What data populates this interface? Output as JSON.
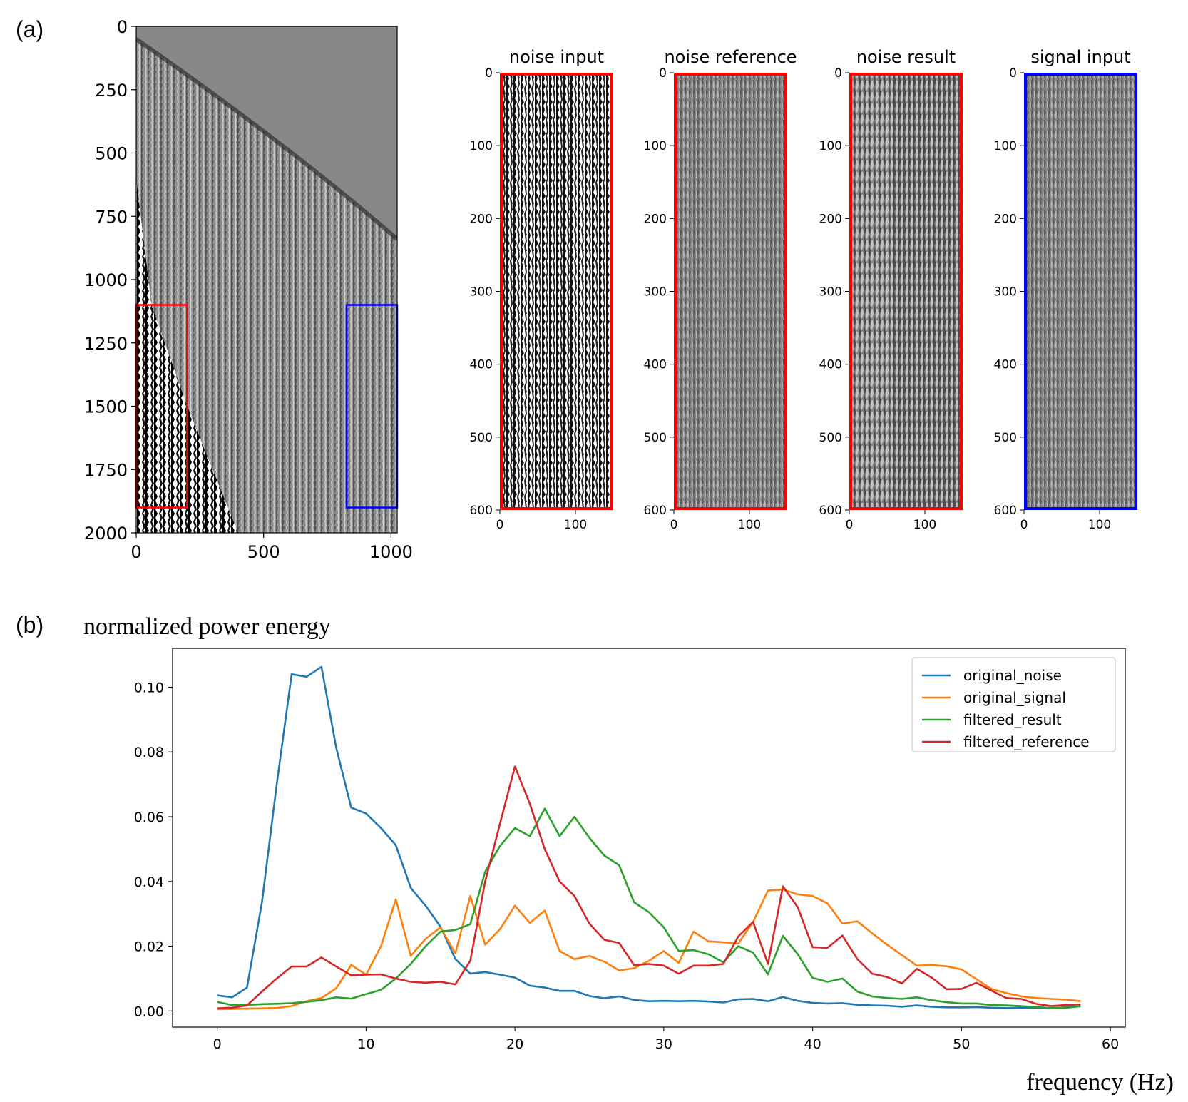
{
  "panel_labels": {
    "a": "(a)",
    "b": "(b)"
  },
  "chart_data": [
    {
      "type": "heatmap",
      "title": "",
      "xlabel": "",
      "ylabel": "",
      "xlim": [
        0,
        1024
      ],
      "ylim": [
        2000,
        0
      ],
      "x_ticks": [
        "0",
        "500",
        "1000"
      ],
      "y_ticks": [
        "0",
        "250",
        "500",
        "750",
        "1000",
        "1250",
        "1500",
        "1750",
        "2000"
      ],
      "colormap": "gray",
      "regions": [
        {
          "x": [
            0,
            200
          ],
          "y": [
            1100,
            1900
          ],
          "color": "#ff0000"
        },
        {
          "x": [
            825,
            1024
          ],
          "y": [
            1100,
            1900
          ],
          "color": "#0000ff"
        }
      ]
    },
    {
      "type": "heatmap",
      "title": "noise input",
      "xlim": [
        0,
        150
      ],
      "ylim": [
        600,
        0
      ],
      "x_ticks": [
        "0",
        "100"
      ],
      "y_ticks": [
        "0",
        "100",
        "200",
        "300",
        "400",
        "500",
        "600"
      ],
      "frame_color": "#ff0000",
      "contrast": "high"
    },
    {
      "type": "heatmap",
      "title": "noise reference",
      "xlim": [
        0,
        150
      ],
      "ylim": [
        600,
        0
      ],
      "x_ticks": [
        "0",
        "100"
      ],
      "y_ticks": [
        "0",
        "100",
        "200",
        "300",
        "400",
        "500",
        "600"
      ],
      "frame_color": "#ff0000",
      "contrast": "low"
    },
    {
      "type": "heatmap",
      "title": "noise result",
      "xlim": [
        0,
        150
      ],
      "ylim": [
        600,
        0
      ],
      "x_ticks": [
        "0",
        "100"
      ],
      "y_ticks": [
        "0",
        "100",
        "200",
        "300",
        "400",
        "500",
        "600"
      ],
      "frame_color": "#ff0000",
      "contrast": "medium"
    },
    {
      "type": "heatmap",
      "title": "signal input",
      "xlim": [
        0,
        150
      ],
      "ylim": [
        600,
        0
      ],
      "x_ticks": [
        "0",
        "100"
      ],
      "y_ticks": [
        "0",
        "100",
        "200",
        "300",
        "400",
        "500",
        "600"
      ],
      "frame_color": "#0000ff",
      "contrast": "low"
    },
    {
      "type": "line",
      "title": "",
      "ylabel": "normalized power energy",
      "xlabel": "frequency (Hz)",
      "xlim": [
        -3,
        61
      ],
      "ylim": [
        -0.005,
        0.112
      ],
      "x_ticks": [
        0,
        10,
        20,
        30,
        40,
        50,
        60
      ],
      "y_ticks": [
        "0.00",
        "0.02",
        "0.04",
        "0.06",
        "0.08",
        "0.10"
      ],
      "legend": "top-right",
      "x": [
        0,
        1,
        2,
        3,
        4,
        5,
        6,
        7,
        8,
        9,
        10,
        11,
        12,
        13,
        14,
        15,
        16,
        17,
        18,
        19,
        20,
        21,
        22,
        23,
        24,
        25,
        26,
        27,
        28,
        29,
        30,
        31,
        32,
        33,
        34,
        35,
        36,
        37,
        38,
        39,
        40,
        41,
        42,
        43,
        44,
        45,
        46,
        47,
        48,
        49,
        50,
        51,
        52,
        53,
        54,
        55,
        56,
        57,
        58
      ],
      "series": [
        {
          "name": "original_noise",
          "color": "#1f77b4",
          "values": [
            0.0048,
            0.0042,
            0.0072,
            0.0335,
            0.07,
            0.104,
            0.1032,
            0.1063,
            0.0812,
            0.0628,
            0.061,
            0.0565,
            0.0512,
            0.038,
            0.0325,
            0.026,
            0.016,
            0.0115,
            0.012,
            0.0112,
            0.0103,
            0.0078,
            0.0072,
            0.0062,
            0.0062,
            0.0046,
            0.0039,
            0.0045,
            0.0034,
            0.003,
            0.0031,
            0.003,
            0.0031,
            0.0029,
            0.0026,
            0.0036,
            0.0037,
            0.003,
            0.0043,
            0.0031,
            0.0025,
            0.0023,
            0.0024,
            0.0019,
            0.0017,
            0.0016,
            0.0013,
            0.0017,
            0.0013,
            0.0011,
            0.0011,
            0.0012,
            0.001,
            0.0009,
            0.001,
            0.001,
            0.0009,
            0.0011,
            0.0014
          ]
        },
        {
          "name": "original_signal",
          "color": "#ff7f0e",
          "values": [
            0.0005,
            0.0006,
            0.0007,
            0.0008,
            0.0009,
            0.0015,
            0.003,
            0.004,
            0.007,
            0.0142,
            0.0112,
            0.02,
            0.0345,
            0.017,
            0.0223,
            0.0258,
            0.0178,
            0.0355,
            0.0205,
            0.0253,
            0.0325,
            0.0272,
            0.031,
            0.0185,
            0.016,
            0.017,
            0.0152,
            0.0125,
            0.0132,
            0.0155,
            0.0185,
            0.0148,
            0.0245,
            0.0215,
            0.0212,
            0.0208,
            0.0275,
            0.0372,
            0.0375,
            0.036,
            0.0355,
            0.0332,
            0.027,
            0.0277,
            0.024,
            0.0205,
            0.0172,
            0.014,
            0.0142,
            0.0138,
            0.0128,
            0.0098,
            0.0068,
            0.0055,
            0.0045,
            0.004,
            0.0037,
            0.0035,
            0.003
          ]
        },
        {
          "name": "filtered_result",
          "color": "#2ca02c",
          "values": [
            0.0028,
            0.0018,
            0.0018,
            0.0021,
            0.0022,
            0.0024,
            0.0028,
            0.0033,
            0.0042,
            0.0038,
            0.0052,
            0.0065,
            0.01,
            0.0145,
            0.02,
            0.0245,
            0.025,
            0.0268,
            0.043,
            0.051,
            0.0565,
            0.054,
            0.0625,
            0.054,
            0.06,
            0.0535,
            0.048,
            0.045,
            0.0336,
            0.0305,
            0.0258,
            0.0185,
            0.0188,
            0.0175,
            0.015,
            0.02,
            0.018,
            0.0113,
            0.0232,
            0.0175,
            0.0102,
            0.009,
            0.01,
            0.006,
            0.0045,
            0.004,
            0.0037,
            0.0042,
            0.0033,
            0.0027,
            0.0023,
            0.0023,
            0.0018,
            0.0017,
            0.0015,
            0.0012,
            0.0009,
            0.0009,
            0.0015
          ]
        },
        {
          "name": "filtered_reference",
          "color": "#d62728",
          "values": [
            0.0008,
            0.001,
            0.0017,
            0.006,
            0.01,
            0.0137,
            0.0137,
            0.0165,
            0.0137,
            0.011,
            0.0112,
            0.0113,
            0.01,
            0.009,
            0.0087,
            0.009,
            0.0082,
            0.0155,
            0.04,
            0.058,
            0.0755,
            0.064,
            0.05,
            0.04,
            0.0355,
            0.027,
            0.022,
            0.021,
            0.0142,
            0.0145,
            0.014,
            0.0115,
            0.014,
            0.014,
            0.0145,
            0.023,
            0.0275,
            0.0145,
            0.0385,
            0.032,
            0.0197,
            0.0195,
            0.0233,
            0.016,
            0.0115,
            0.0105,
            0.0085,
            0.013,
            0.0103,
            0.0067,
            0.0068,
            0.0087,
            0.0063,
            0.004,
            0.0037,
            0.0022,
            0.0015,
            0.0018,
            0.002
          ]
        }
      ]
    }
  ]
}
